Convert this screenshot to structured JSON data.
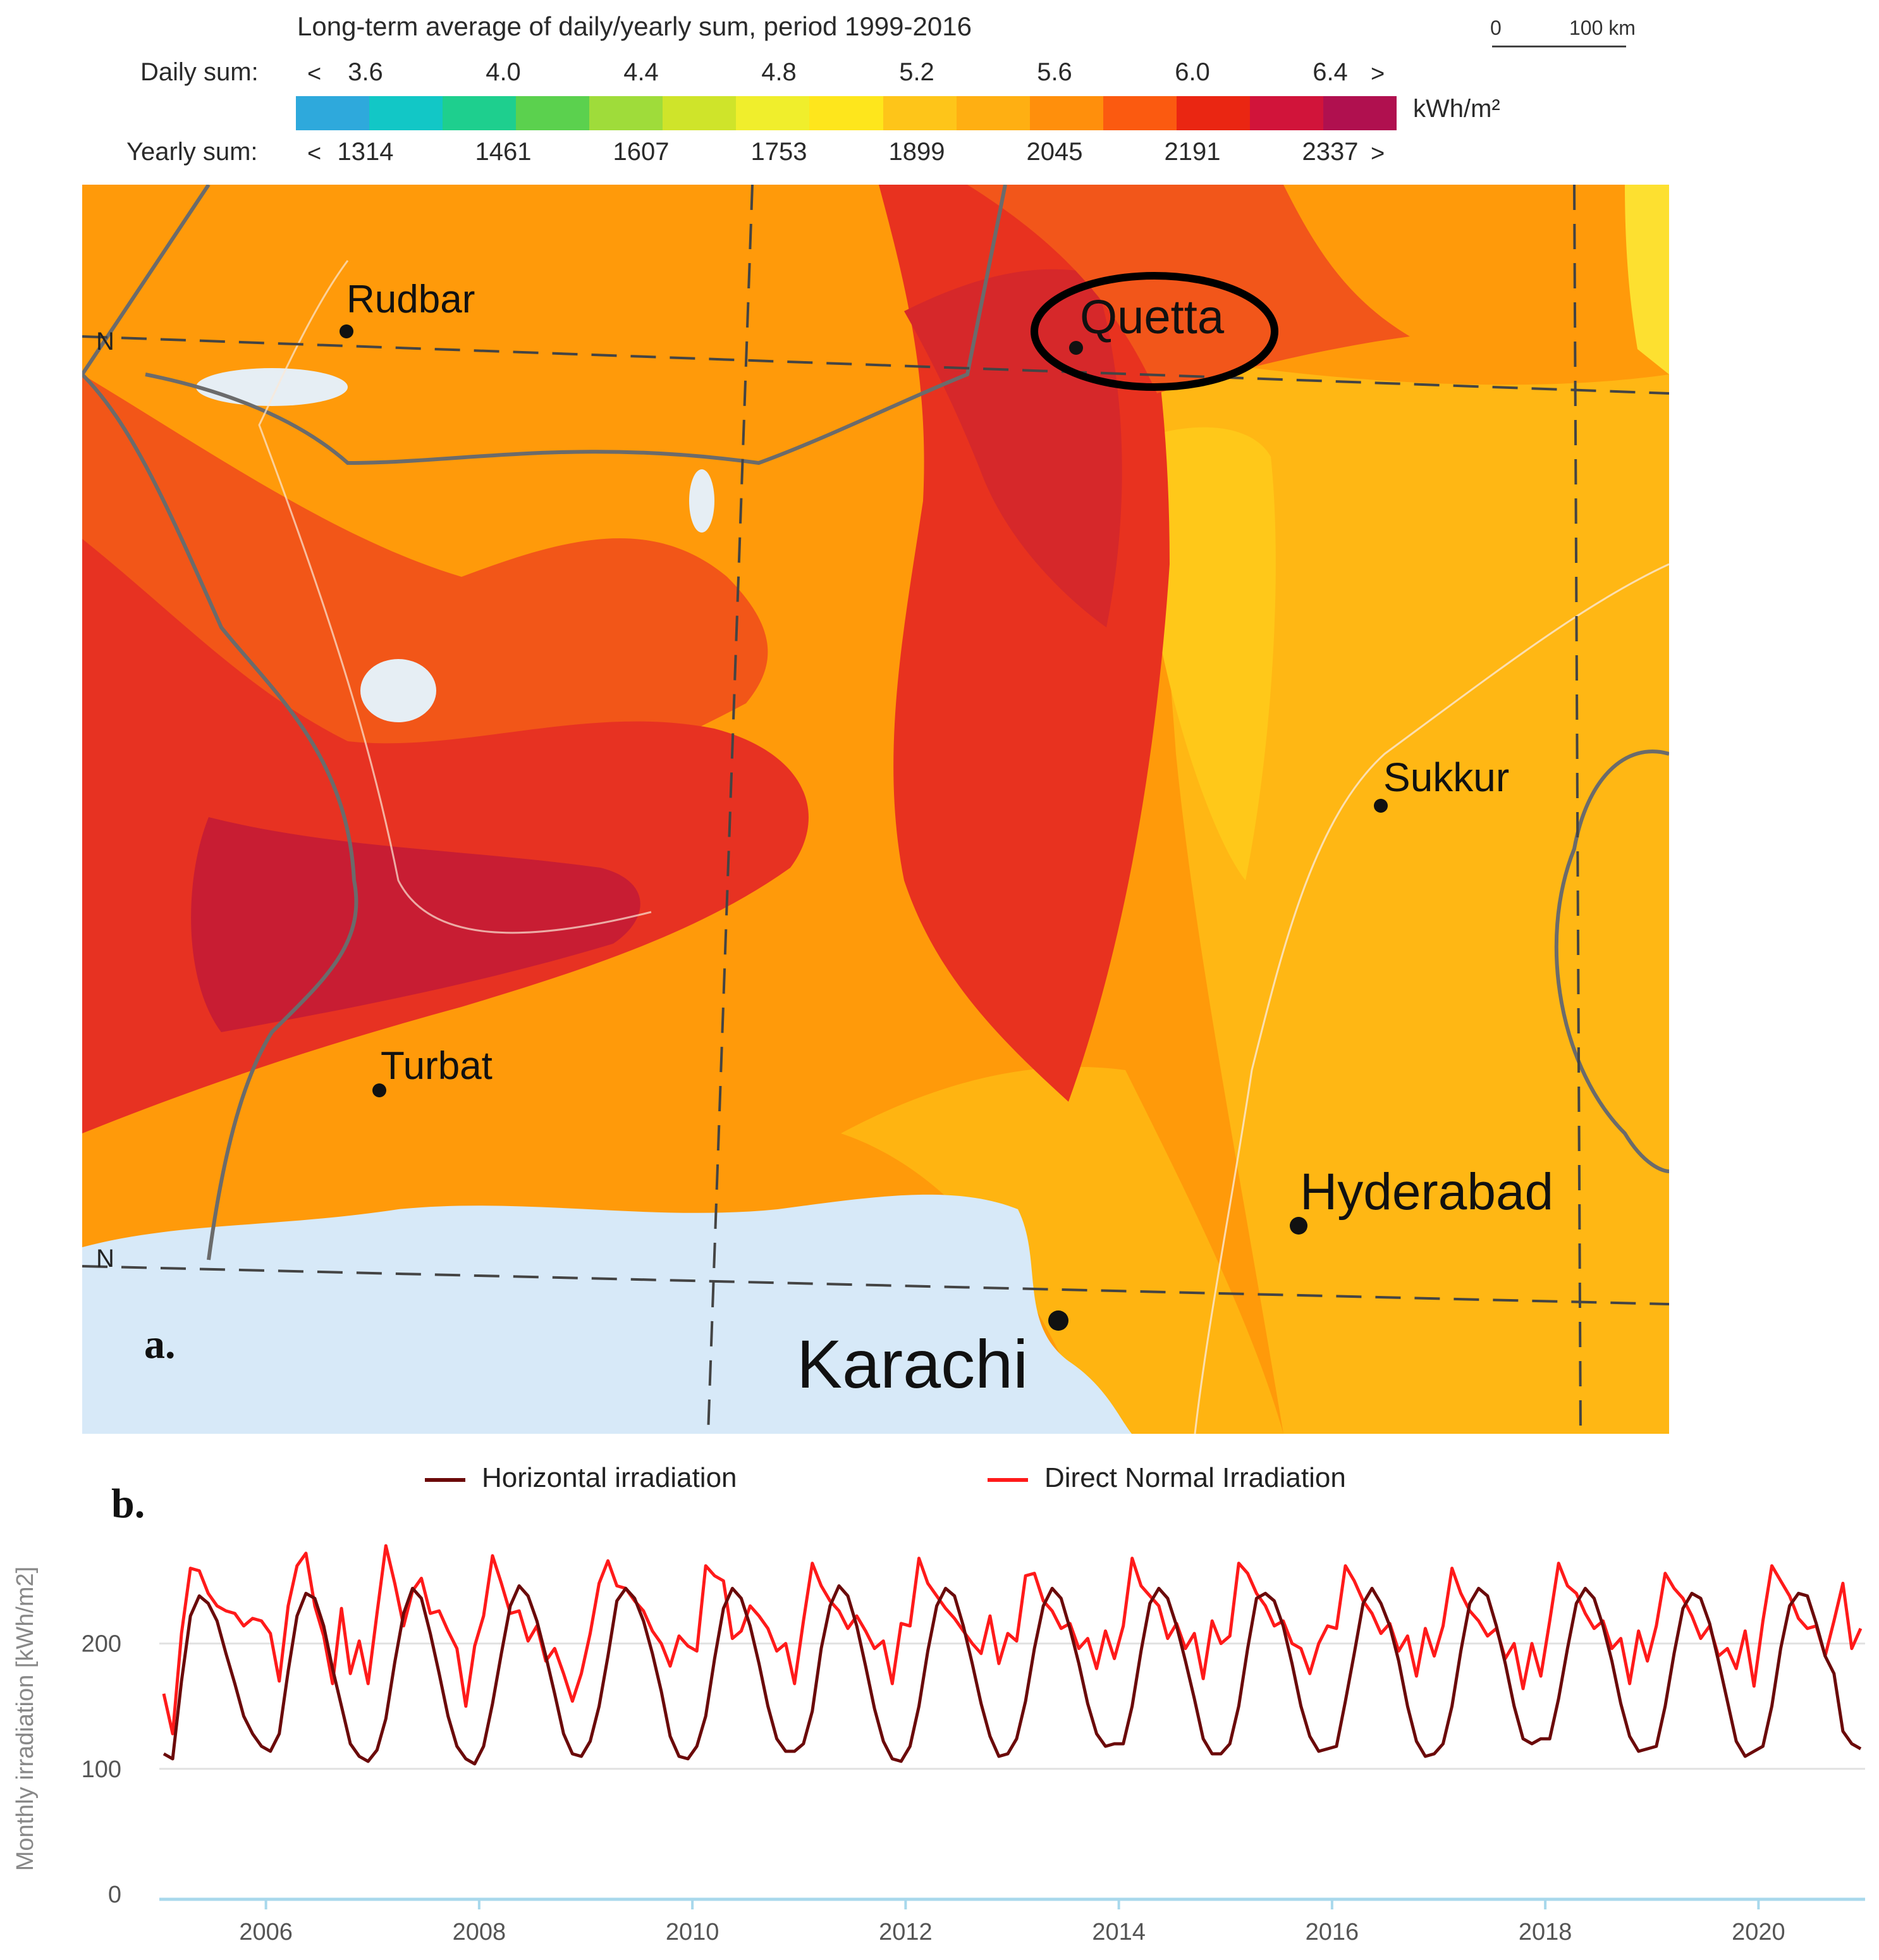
{
  "legend": {
    "title": "Long-term average of daily/yearly sum, period 1999-2016",
    "daily_label": "Daily sum:",
    "yearly_label": "Yearly sum:",
    "daily_ticks": [
      "3.6",
      "4.0",
      "4.4",
      "4.8",
      "5.2",
      "5.6",
      "6.0",
      "6.4"
    ],
    "yearly_ticks": [
      "1314",
      "1461",
      "1607",
      "1753",
      "1899",
      "2045",
      "2191",
      "2337"
    ],
    "less_than": "<",
    "greater_than": ">",
    "unit": "kWh/m²",
    "colors": [
      "#2ea9dc",
      "#12c7c6",
      "#1ecf8e",
      "#5bd14e",
      "#9fdc3a",
      "#cfe42a",
      "#f0ee2c",
      "#fee61c",
      "#fec519",
      "#ffaf12",
      "#ff8f0c",
      "#fb5a10",
      "#ea2612",
      "#d1143a",
      "#b0104f"
    ]
  },
  "scale_bar": {
    "zero": "0",
    "distance": "100 km"
  },
  "map": {
    "cities": [
      {
        "name": "Rudbar"
      },
      {
        "name": "Quetta"
      },
      {
        "name": "Sukkur"
      },
      {
        "name": "Turbat"
      },
      {
        "name": "Hyderabad"
      },
      {
        "name": "Karachi"
      }
    ],
    "lat_label": "N",
    "panel_label": "a.",
    "colors": {
      "sea": "#d7e9f8",
      "low": "#ffc112",
      "mid": "#ff9a0a",
      "high": "#f9561b",
      "peak": "#e02d20",
      "top": "#c81d33"
    }
  },
  "chart_data": {
    "type": "line",
    "panel_label": "b.",
    "ylabel": "Monthly irradiation [kWh/m2]",
    "ylim": [
      0,
      280
    ],
    "xlim": [
      2005.0,
      2021.0
    ],
    "yticks": [
      0,
      100,
      200
    ],
    "xticks": [
      2006,
      2008,
      2010,
      2012,
      2014,
      2016,
      2018,
      2020
    ],
    "grid": "horizontal",
    "legend_placement": "top",
    "series": [
      {
        "name": "Horizontal irradiation",
        "color": "#6b0a0a",
        "values": [
          112,
          108,
          170,
          222,
          238,
          232,
          218,
          192,
          168,
          142,
          128,
          118,
          114,
          128,
          178,
          222,
          240,
          236,
          214,
          180,
          150,
          120,
          110,
          106,
          115,
          140,
          185,
          224,
          244,
          236,
          208,
          176,
          142,
          118,
          108,
          104,
          118,
          152,
          192,
          230,
          246,
          238,
          218,
          190,
          160,
          128,
          112,
          110,
          122,
          150,
          190,
          234,
          244,
          236,
          218,
          192,
          162,
          126,
          110,
          108,
          118,
          142,
          188,
          228,
          244,
          236,
          214,
          184,
          150,
          124,
          114,
          114,
          120,
          146,
          196,
          230,
          246,
          238,
          214,
          182,
          148,
          122,
          108,
          106,
          118,
          150,
          194,
          230,
          244,
          238,
          214,
          184,
          152,
          126,
          110,
          112,
          124,
          154,
          196,
          230,
          244,
          236,
          212,
          184,
          152,
          128,
          118,
          120,
          120,
          150,
          194,
          232,
          244,
          236,
          214,
          186,
          156,
          124,
          112,
          112,
          120,
          150,
          196,
          236,
          240,
          234,
          214,
          184,
          150,
          126,
          114,
          116,
          118,
          154,
          192,
          232,
          244,
          232,
          214,
          186,
          150,
          122,
          110,
          112,
          120,
          150,
          194,
          232,
          244,
          238,
          214,
          184,
          150,
          124,
          120,
          124,
          124,
          156,
          196,
          232,
          244,
          236,
          214,
          186,
          152,
          126,
          114,
          116,
          118,
          150,
          192,
          228,
          240,
          236,
          216,
          186,
          154,
          122,
          110,
          114,
          118,
          150,
          196,
          230,
          240,
          238,
          216,
          190,
          176,
          130,
          120,
          116
        ]
      },
      {
        "name": "Direct Normal Irradiation",
        "color": "#ff1a1a",
        "values": [
          160,
          128,
          208,
          260,
          258,
          240,
          230,
          226,
          224,
          214,
          220,
          218,
          208,
          170,
          230,
          262,
          272,
          230,
          206,
          168,
          228,
          176,
          202,
          168,
          224,
          278,
          248,
          214,
          242,
          252,
          224,
          226,
          210,
          196,
          150,
          198,
          222,
          270,
          248,
          224,
          226,
          202,
          214,
          186,
          196,
          176,
          154,
          176,
          208,
          248,
          266,
          246,
          244,
          234,
          226,
          210,
          200,
          182,
          206,
          198,
          194,
          262,
          254,
          250,
          204,
          210,
          230,
          222,
          212,
          194,
          200,
          168,
          218,
          264,
          246,
          234,
          226,
          212,
          222,
          210,
          196,
          202,
          168,
          216,
          214,
          268,
          248,
          238,
          228,
          220,
          210,
          200,
          192,
          222,
          184,
          208,
          202,
          254,
          256,
          234,
          226,
          212,
          216,
          196,
          204,
          180,
          210,
          188,
          214,
          268,
          246,
          238,
          230,
          204,
          216,
          196,
          208,
          172,
          218,
          200,
          206,
          264,
          256,
          240,
          230,
          214,
          218,
          200,
          196,
          176,
          200,
          214,
          212,
          262,
          250,
          234,
          224,
          208,
          216,
          194,
          206,
          174,
          212,
          190,
          214,
          260,
          240,
          226,
          218,
          206,
          212,
          188,
          200,
          164,
          200,
          174,
          218,
          264,
          246,
          240,
          224,
          212,
          218,
          196,
          204,
          168,
          210,
          186,
          214,
          256,
          244,
          236,
          222,
          204,
          214,
          190,
          196,
          180,
          210,
          166,
          218,
          262,
          250,
          238,
          220,
          212,
          214,
          190,
          218,
          248,
          196,
          212
        ]
      }
    ]
  }
}
